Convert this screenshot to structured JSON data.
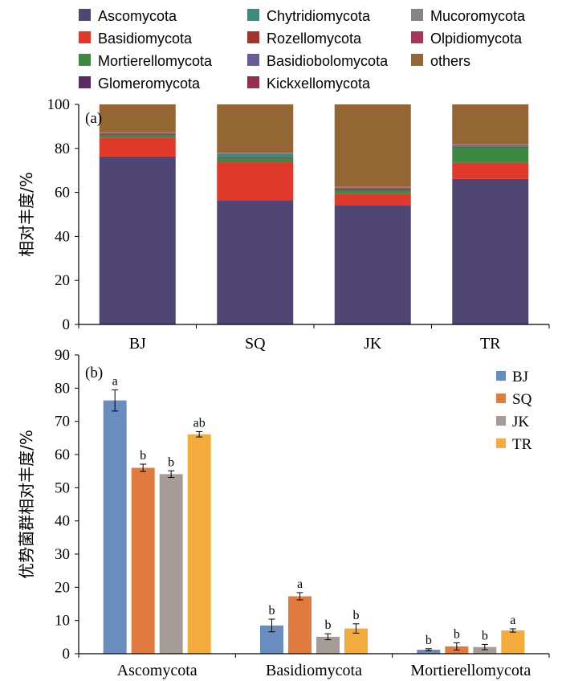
{
  "chart_data": [
    {
      "type": "bar",
      "stacked": true,
      "panel_label": "(a)",
      "ylabel": "相对丰度/%",
      "ylim": [
        0,
        100
      ],
      "yticks": [
        "0",
        "20",
        "40",
        "60",
        "80",
        "100"
      ],
      "categories": [
        "BJ",
        "SQ",
        "JK",
        "TR"
      ],
      "legend_position": "top",
      "series": [
        {
          "name": "Ascomycota",
          "color": "#4f4673",
          "values": [
            76.3,
            56.5,
            54.3,
            66.1
          ]
        },
        {
          "name": "Basidiomycota",
          "color": "#e0392c",
          "values": [
            8.5,
            17.2,
            4.9,
            7.4
          ]
        },
        {
          "name": "Mortierellomycota",
          "color": "#3c8a42",
          "values": [
            1.2,
            2.0,
            1.9,
            7.0
          ]
        },
        {
          "name": "Glomeromycota",
          "color": "#5c2a63",
          "values": [
            0.3,
            0.2,
            0.4,
            0.3
          ]
        },
        {
          "name": "Chytridiomycota",
          "color": "#3f8a7d",
          "values": [
            0.2,
            1.5,
            0.3,
            0.2
          ]
        },
        {
          "name": "Rozellomycota",
          "color": "#a3352f",
          "values": [
            0.2,
            0.2,
            0.3,
            0.3
          ]
        },
        {
          "name": "Basidiobolomycota",
          "color": "#6a5a95",
          "values": [
            0.3,
            0.1,
            0.2,
            0.2
          ]
        },
        {
          "name": "Kickxellomycota",
          "color": "#962e52",
          "values": [
            0.1,
            0.1,
            0.1,
            0.1
          ]
        },
        {
          "name": "Mucoromycota",
          "color": "#8a8383",
          "values": [
            0.1,
            0.1,
            0.1,
            0.1
          ]
        },
        {
          "name": "Olpidiomycota",
          "color": "#a3385a",
          "values": [
            0.1,
            0.1,
            0.1,
            0.1
          ]
        },
        {
          "name": "others",
          "color": "#936633",
          "values": [
            12.7,
            22.0,
            37.4,
            18.2
          ]
        }
      ],
      "legend_layout": [
        [
          "Ascomycota",
          "Chytridiomycota",
          "Mucoromycota"
        ],
        [
          "Basidiomycota",
          "Rozellomycota",
          "Olpidiomycota"
        ],
        [
          "Mortierellomycota",
          "Basidiobolomycota",
          "others"
        ],
        [
          "Glomeromycota",
          "Kickxellomycota"
        ]
      ]
    },
    {
      "type": "bar",
      "grouped": true,
      "panel_label": "(b)",
      "ylabel": "优势菌群相对丰度/%",
      "ylim": [
        0,
        90
      ],
      "yticks": [
        "0",
        "10",
        "20",
        "30",
        "40",
        "50",
        "60",
        "70",
        "80",
        "90"
      ],
      "categories": [
        "Ascomycota",
        "Basidiomycota",
        "Mortierellomycota"
      ],
      "legend_position": "top-right",
      "series": [
        {
          "name": "BJ",
          "color": "#6a8dbf",
          "values": [
            76.3,
            8.5,
            1.2
          ],
          "errors": [
            3.2,
            1.9,
            0.3
          ],
          "labels": [
            "a",
            "b",
            "b"
          ]
        },
        {
          "name": "SQ",
          "color": "#e07a3f",
          "values": [
            56.0,
            17.3,
            2.2
          ],
          "errors": [
            1.1,
            1.1,
            1.1
          ],
          "labels": [
            "b",
            "a",
            "b"
          ]
        },
        {
          "name": "JK",
          "color": "#a59c98",
          "values": [
            54.1,
            5.1,
            2.0
          ],
          "errors": [
            1.0,
            0.9,
            0.8
          ],
          "labels": [
            "b",
            "b",
            "b"
          ]
        },
        {
          "name": "TR",
          "color": "#f3ab3b",
          "values": [
            66.1,
            7.6,
            7.0
          ],
          "errors": [
            0.8,
            1.4,
            0.5
          ],
          "labels": [
            "ab",
            "b",
            "a"
          ]
        }
      ]
    }
  ]
}
